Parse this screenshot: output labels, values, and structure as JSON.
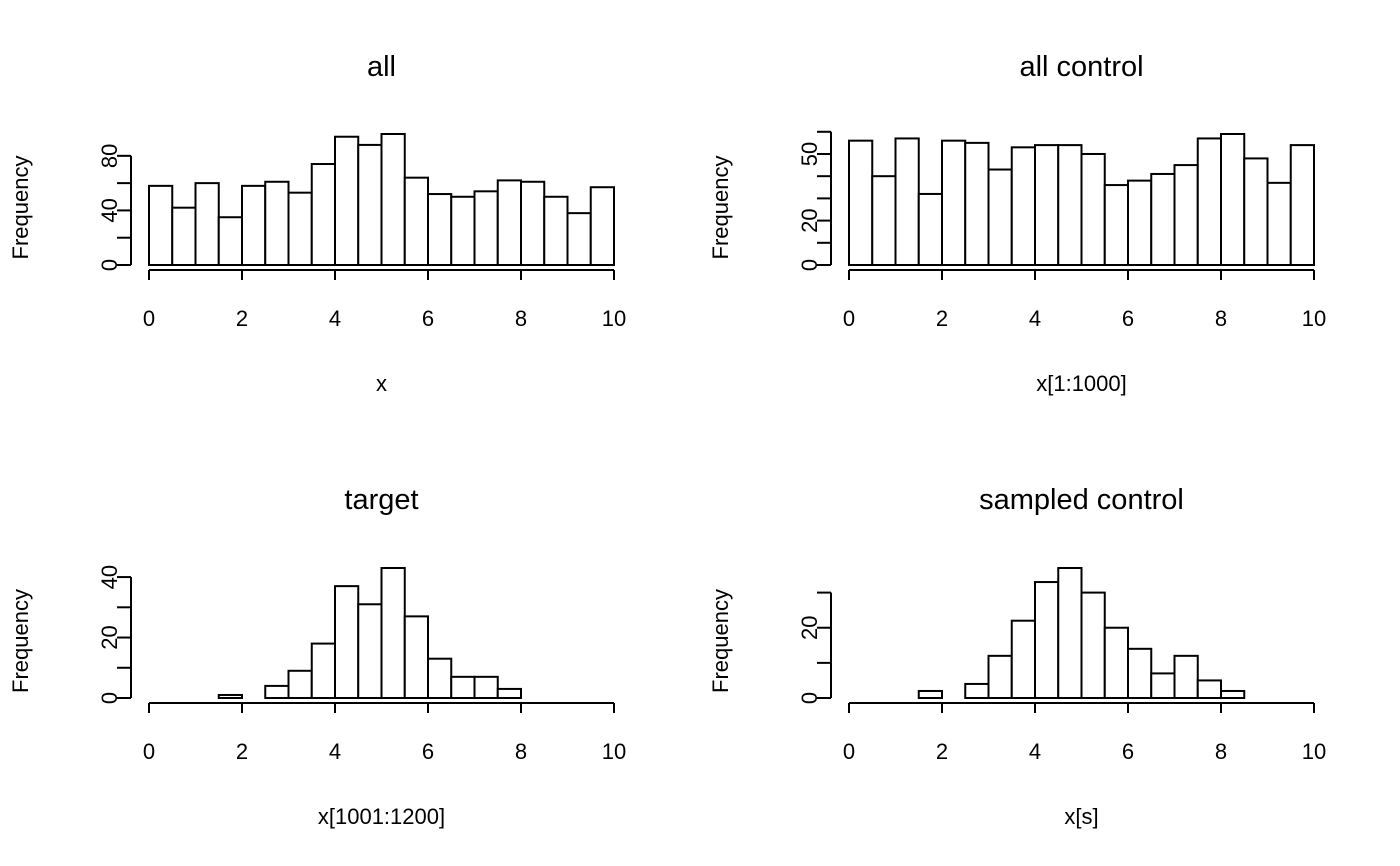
{
  "chart_data": [
    {
      "type": "bar",
      "subtype": "histogram",
      "title": "all",
      "xlabel": "x",
      "ylabel": "Frequency",
      "bin_edges": [
        0,
        0.5,
        1,
        1.5,
        2,
        2.5,
        3,
        3.5,
        4,
        4.5,
        5,
        5.5,
        6,
        6.5,
        7,
        7.5,
        8,
        8.5,
        9,
        9.5,
        10
      ],
      "values": [
        58,
        42,
        60,
        35,
        58,
        61,
        53,
        74,
        94,
        88,
        96,
        64,
        52,
        50,
        54,
        62,
        61,
        50,
        38,
        57
      ],
      "xlim": [
        0,
        10
      ],
      "ylim": [
        0,
        96
      ],
      "xticks": [
        "0",
        "2",
        "4",
        "6",
        "8",
        "10"
      ],
      "yticks": [
        0,
        20,
        40,
        60,
        80
      ],
      "ytick_labels": [
        "0",
        "",
        "40",
        "",
        "80"
      ]
    },
    {
      "type": "bar",
      "subtype": "histogram",
      "title": "all control",
      "xlabel": "x[1:1000]",
      "ylabel": "Frequency",
      "bin_edges": [
        0,
        0.5,
        1,
        1.5,
        2,
        2.5,
        3,
        3.5,
        4,
        4.5,
        5,
        5.5,
        6,
        6.5,
        7,
        7.5,
        8,
        8.5,
        9,
        9.5,
        10
      ],
      "values": [
        56,
        40,
        57,
        32,
        56,
        55,
        43,
        53,
        54,
        54,
        50,
        36,
        38,
        41,
        45,
        57,
        59,
        48,
        37,
        54
      ],
      "xlim": [
        0,
        10
      ],
      "ylim": [
        0,
        59
      ],
      "xticks": [
        "0",
        "2",
        "4",
        "6",
        "8",
        "10"
      ],
      "yticks": [
        0,
        10,
        20,
        30,
        40,
        50,
        60
      ],
      "ytick_labels": [
        "0",
        "",
        "20",
        "",
        "",
        "50",
        ""
      ]
    },
    {
      "type": "bar",
      "subtype": "histogram",
      "title": "target",
      "xlabel": "x[1001:1200]",
      "ylabel": "Frequency",
      "bin_edges": [
        0,
        0.5,
        1,
        1.5,
        2,
        2.5,
        3,
        3.5,
        4,
        4.5,
        5,
        5.5,
        6,
        6.5,
        7,
        7.5,
        8,
        8.5,
        9,
        9.5,
        10
      ],
      "values": [
        0,
        0,
        0,
        1,
        0,
        4,
        9,
        18,
        37,
        31,
        43,
        27,
        13,
        7,
        7,
        3,
        0,
        0,
        0,
        0
      ],
      "xlim": [
        0,
        10
      ],
      "ylim": [
        0,
        43
      ],
      "xticks": [
        "0",
        "2",
        "4",
        "6",
        "8",
        "10"
      ],
      "yticks": [
        0,
        10,
        20,
        30,
        40
      ],
      "ytick_labels": [
        "0",
        "",
        "20",
        "",
        "40"
      ]
    },
    {
      "type": "bar",
      "subtype": "histogram",
      "title": "sampled control",
      "xlabel": "x[s]",
      "ylabel": "Frequency",
      "bin_edges": [
        0,
        0.5,
        1,
        1.5,
        2,
        2.5,
        3,
        3.5,
        4,
        4.5,
        5,
        5.5,
        6,
        6.5,
        7,
        7.5,
        8,
        8.5,
        9,
        9.5,
        10
      ],
      "values": [
        0,
        0,
        0,
        2,
        0,
        4,
        12,
        22,
        33,
        37,
        30,
        20,
        14,
        7,
        12,
        5,
        2,
        0,
        0,
        0
      ],
      "xlim": [
        0,
        10
      ],
      "ylim": [
        0,
        37
      ],
      "xticks": [
        "0",
        "2",
        "4",
        "6",
        "8",
        "10"
      ],
      "yticks": [
        0,
        10,
        20,
        30
      ],
      "ytick_labels": [
        "0",
        "",
        "20",
        ""
      ]
    }
  ]
}
